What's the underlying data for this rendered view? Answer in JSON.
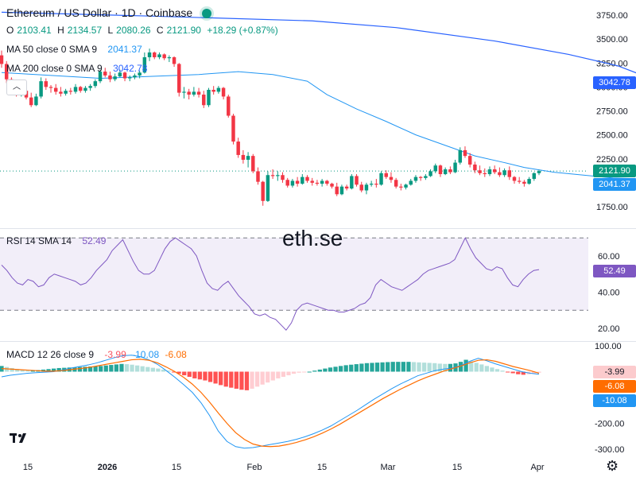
{
  "header": {
    "title": "Ethereum / US Dollar · 1D · Coinbase",
    "ohlc": {
      "o_label": "O",
      "o": "2103.41",
      "h_label": "H",
      "h": "2134.57",
      "l_label": "L",
      "l": "2080.26",
      "c_label": "C",
      "c": "2121.90",
      "change": "+18.29 (+0.87%)"
    },
    "ma50": {
      "label": "MA 50 close 0 SMA 9",
      "value": "2041.37"
    },
    "ma200": {
      "label": "MA 200 close 0 SMA 9",
      "value": "3042.78"
    }
  },
  "watermark": "eth.se",
  "price_tags": {
    "ma200": "3042.78",
    "last": "2121.90",
    "ma50": "2041.37"
  },
  "rsi": {
    "label": "RSI 14 SMA 14",
    "value": "52.49",
    "tag": "52.49"
  },
  "macd": {
    "label": "MACD 12 26 close 9",
    "hist": "-3.99",
    "macd": "-10.08",
    "signal": "-6.08",
    "tags": [
      "-3.99",
      "-6.08",
      "-10.08"
    ]
  },
  "colors": {
    "up": "#089981",
    "down": "#f23645",
    "ma50": "#2196f3",
    "ma200": "#2962ff",
    "rsi": "#7e57c2",
    "macd": "#2196f3",
    "signal": "#ff6d00"
  },
  "chart_data": [
    {
      "type": "candlestick",
      "title": "Ethereum / US Dollar · 1D · Coinbase",
      "x_tick_labels": [
        "15",
        "2026",
        "15",
        "Feb",
        "15",
        "Mar",
        "15",
        "Apr"
      ],
      "y_tick_labels": [
        "3750.00",
        "3500.00",
        "3250.00",
        "3000.00",
        "2750.00",
        "2500.00",
        "2250.00",
        "1750.00"
      ],
      "ylim": [
        1650,
        3800
      ],
      "candles": [
        [
          3330,
          3380,
          3200,
          3240
        ],
        [
          3240,
          3270,
          3040,
          3080
        ],
        [
          3080,
          3100,
          2960,
          3000
        ],
        [
          3000,
          3040,
          2900,
          2940
        ],
        [
          2940,
          2990,
          2900,
          2960
        ],
        [
          2960,
          3020,
          2870,
          2890
        ],
        [
          2890,
          2940,
          2790,
          2810
        ],
        [
          2810,
          2930,
          2800,
          2900
        ],
        [
          2900,
          3100,
          2880,
          3060
        ],
        [
          3060,
          3090,
          2970,
          3000
        ],
        [
          3000,
          3020,
          2940,
          2990
        ],
        [
          2990,
          3030,
          2920,
          2950
        ],
        [
          2950,
          3000,
          2900,
          2930
        ],
        [
          2930,
          2980,
          2910,
          2960
        ],
        [
          2960,
          2990,
          2920,
          2950
        ],
        [
          2950,
          3030,
          2930,
          3000
        ],
        [
          3000,
          3010,
          2940,
          2960
        ],
        [
          2960,
          3010,
          2940,
          2990
        ],
        [
          2990,
          3030,
          2960,
          3010
        ],
        [
          3010,
          3080,
          2990,
          3060
        ],
        [
          3060,
          3180,
          3040,
          3160
        ],
        [
          3160,
          3200,
          3100,
          3120
        ],
        [
          3120,
          3160,
          3050,
          3080
        ],
        [
          3080,
          3140,
          3060,
          3110
        ],
        [
          3110,
          3180,
          3100,
          3150
        ],
        [
          3150,
          3160,
          3060,
          3090
        ],
        [
          3090,
          3120,
          3060,
          3100
        ],
        [
          3100,
          3140,
          3080,
          3120
        ],
        [
          3120,
          3170,
          3090,
          3150
        ],
        [
          3150,
          3360,
          3140,
          3310
        ],
        [
          3310,
          3400,
          3270,
          3360
        ],
        [
          3360,
          3370,
          3290,
          3310
        ],
        [
          3310,
          3360,
          3290,
          3340
        ],
        [
          3340,
          3350,
          3280,
          3300
        ],
        [
          3300,
          3330,
          3260,
          3310
        ],
        [
          3310,
          3320,
          3210,
          3240
        ],
        [
          3240,
          3250,
          2900,
          2940
        ],
        [
          2940,
          3000,
          2880,
          2950
        ],
        [
          2950,
          2980,
          2870,
          2920
        ],
        [
          2920,
          3000,
          2900,
          2950
        ],
        [
          2950,
          2990,
          2890,
          2920
        ],
        [
          2920,
          2960,
          2780,
          2810
        ],
        [
          2810,
          2990,
          2790,
          2970
        ],
        [
          2970,
          3010,
          2920,
          2950
        ],
        [
          2950,
          3010,
          2930,
          2990
        ],
        [
          2990,
          3000,
          2870,
          2900
        ],
        [
          2900,
          2920,
          2680,
          2700
        ],
        [
          2700,
          2720,
          2400,
          2430
        ],
        [
          2430,
          2470,
          2260,
          2290
        ],
        [
          2290,
          2340,
          2200,
          2240
        ],
        [
          2240,
          2320,
          2160,
          2280
        ],
        [
          2280,
          2300,
          2100,
          2120
        ],
        [
          2120,
          2160,
          1980,
          2010
        ],
        [
          2010,
          2020,
          1760,
          1810
        ],
        [
          1810,
          2120,
          1800,
          2080
        ],
        [
          2080,
          2140,
          2040,
          2070
        ],
        [
          2070,
          2120,
          2020,
          2080
        ],
        [
          2080,
          2110,
          2000,
          2030
        ],
        [
          2030,
          2050,
          1950,
          1970
        ],
        [
          1970,
          2040,
          1950,
          2020
        ],
        [
          2020,
          2060,
          1960,
          1990
        ],
        [
          1990,
          2090,
          1980,
          2060
        ],
        [
          2060,
          2080,
          2000,
          2020
        ],
        [
          2020,
          2050,
          1970,
          2000
        ],
        [
          2000,
          2030,
          1970,
          1990
        ],
        [
          1990,
          2040,
          1960,
          2020
        ],
        [
          2020,
          2030,
          1970,
          1990
        ],
        [
          1990,
          2000,
          1940,
          1960
        ],
        [
          1960,
          2000,
          1860,
          1880
        ],
        [
          1880,
          1980,
          1870,
          1960
        ],
        [
          1960,
          1980,
          1920,
          1940
        ],
        [
          1940,
          2090,
          1930,
          2070
        ],
        [
          2070,
          2090,
          1960,
          1980
        ],
        [
          1980,
          2010,
          1900,
          1920
        ],
        [
          1920,
          2000,
          1880,
          1980
        ],
        [
          1980,
          2020,
          1960,
          1990
        ],
        [
          1990,
          2040,
          1950,
          1980
        ],
        [
          1980,
          2120,
          1970,
          2100
        ],
        [
          2100,
          2130,
          2040,
          2060
        ],
        [
          2060,
          2110,
          2000,
          2030
        ],
        [
          2030,
          2050,
          1940,
          1960
        ],
        [
          1960,
          1990,
          1920,
          1950
        ],
        [
          1950,
          1990,
          1930,
          1980
        ],
        [
          1980,
          2040,
          1970,
          2020
        ],
        [
          2020,
          2080,
          2000,
          2060
        ],
        [
          2060,
          2070,
          2020,
          2050
        ],
        [
          2050,
          2090,
          2030,
          2070
        ],
        [
          2070,
          2140,
          2060,
          2120
        ],
        [
          2120,
          2200,
          2100,
          2180
        ],
        [
          2180,
          2190,
          2060,
          2090
        ],
        [
          2090,
          2160,
          2080,
          2140
        ],
        [
          2140,
          2170,
          2090,
          2110
        ],
        [
          2110,
          2240,
          2100,
          2210
        ],
        [
          2210,
          2370,
          2190,
          2340
        ],
        [
          2340,
          2380,
          2260,
          2280
        ],
        [
          2280,
          2310,
          2160,
          2190
        ],
        [
          2190,
          2220,
          2100,
          2130
        ],
        [
          2130,
          2180,
          2080,
          2100
        ],
        [
          2100,
          2150,
          2060,
          2090
        ],
        [
          2090,
          2170,
          2070,
          2140
        ],
        [
          2140,
          2180,
          2090,
          2110
        ],
        [
          2110,
          2160,
          2060,
          2080
        ],
        [
          2080,
          2150,
          2060,
          2130
        ],
        [
          2130,
          2170,
          2030,
          2060
        ],
        [
          2060,
          2070,
          1990,
          2020
        ],
        [
          2020,
          2060,
          1990,
          2010
        ],
        [
          2010,
          2030,
          1960,
          1990
        ],
        [
          1990,
          2060,
          1980,
          2040
        ],
        [
          2040,
          2110,
          2020,
          2100
        ],
        [
          2100,
          2135,
          2080,
          2122
        ]
      ],
      "ma50": [
        [
          0,
          3150
        ],
        [
          20,
          3090
        ],
        [
          40,
          3130
        ],
        [
          48,
          3160
        ],
        [
          55,
          3130
        ],
        [
          62,
          3060
        ],
        [
          66,
          2920
        ],
        [
          72,
          2770
        ],
        [
          78,
          2640
        ],
        [
          84,
          2500
        ],
        [
          90,
          2390
        ],
        [
          96,
          2280
        ],
        [
          102,
          2210
        ],
        [
          106,
          2160
        ],
        [
          112,
          2110
        ],
        [
          118,
          2080
        ],
        [
          124,
          2050
        ],
        [
          130,
          2040
        ],
        [
          134,
          2041.37
        ]
      ],
      "ma200": [
        [
          0,
          3780
        ],
        [
          30,
          3740
        ],
        [
          63,
          3690
        ],
        [
          80,
          3620
        ],
        [
          100,
          3480
        ],
        [
          115,
          3340
        ],
        [
          125,
          3220
        ],
        [
          134,
          3042.78
        ]
      ]
    },
    {
      "type": "line",
      "title": "RSI 14 SMA 14",
      "y_tick_labels": [
        "60.00",
        "40.00",
        "20.00"
      ],
      "ylim": [
        15,
        80
      ],
      "bands": [
        30,
        70
      ],
      "values": [
        55,
        52,
        48,
        45,
        44,
        47,
        46,
        43,
        44,
        48,
        50,
        49,
        48,
        47,
        46,
        44,
        45,
        48,
        52,
        55,
        58,
        63,
        66,
        69,
        63,
        57,
        52,
        50,
        50,
        52,
        58,
        64,
        68,
        70,
        68,
        66,
        64,
        60,
        52,
        45,
        42,
        41,
        44,
        46,
        42,
        38,
        35,
        32,
        28,
        27,
        28,
        26,
        25,
        22,
        19,
        23,
        30,
        33,
        34,
        33,
        32,
        31,
        30,
        30,
        29,
        29,
        30,
        31,
        33,
        34,
        37,
        44,
        47,
        45,
        43,
        42,
        41,
        43,
        45,
        47,
        50,
        52,
        53,
        54,
        55,
        56,
        58,
        64,
        70,
        64,
        59,
        56,
        53,
        52,
        54,
        53,
        48,
        44,
        43,
        47,
        50,
        52,
        52.49
      ]
    },
    {
      "type": "bar+line",
      "title": "MACD 12 26 close 9",
      "y_tick_labels": [
        "100.00",
        "0.00",
        "-100.00",
        "-200.00",
        "-300.00"
      ],
      "ylim": [
        -320,
        110
      ],
      "histogram": [
        22,
        18,
        14,
        10,
        6,
        4,
        5,
        6,
        8,
        10,
        12,
        14,
        15,
        16,
        17,
        18,
        19,
        20,
        21,
        22,
        24,
        26,
        28,
        30,
        29,
        27,
        24,
        21,
        18,
        15,
        12,
        8,
        4,
        -2,
        -8,
        -14,
        -20,
        -26,
        -30,
        -34,
        -40,
        -46,
        -52,
        -58,
        -62,
        -66,
        -70,
        -72,
        -66,
        -58,
        -50,
        -42,
        -34,
        -26,
        -20,
        -14,
        -8,
        -4,
        -2,
        0,
        4,
        8,
        12,
        16,
        19,
        22,
        25,
        27,
        29,
        31,
        33,
        34,
        35,
        36,
        37,
        38,
        38,
        38,
        38,
        37,
        36,
        35,
        34,
        33,
        31,
        30,
        30,
        32,
        38,
        46,
        40,
        34,
        28,
        22,
        16,
        10,
        4,
        -2,
        -6,
        -10,
        -12,
        -10,
        -8,
        -3.99
      ],
      "macd": [
        -20,
        -14,
        -10,
        -6,
        -4,
        -2,
        0,
        6,
        14,
        20,
        26,
        34,
        44,
        54,
        62,
        64,
        58,
        46,
        28,
        4,
        -22,
        -50,
        -80,
        -120,
        -170,
        -230,
        -270,
        -290,
        -296,
        -294,
        -288,
        -282,
        -276,
        -270,
        -262,
        -252,
        -240,
        -226,
        -210,
        -190,
        -170,
        -150,
        -128,
        -106,
        -86,
        -66,
        -48,
        -32,
        -16,
        -6,
        4,
        10,
        14,
        24,
        40,
        52,
        42,
        30,
        20,
        10,
        0,
        -6,
        -10.08
      ],
      "signal": [
        12,
        10,
        8,
        6,
        4,
        2,
        2,
        4,
        8,
        12,
        16,
        22,
        28,
        34,
        40,
        46,
        48,
        44,
        34,
        18,
        0,
        -22,
        -48,
        -80,
        -118,
        -160,
        -200,
        -236,
        -262,
        -280,
        -288,
        -290,
        -288,
        -282,
        -274,
        -264,
        -252,
        -238,
        -222,
        -204,
        -184,
        -164,
        -144,
        -124,
        -104,
        -86,
        -68,
        -52,
        -36,
        -22,
        -10,
        2,
        12,
        22,
        34,
        44,
        46,
        40,
        30,
        20,
        12,
        4,
        -6.08
      ]
    }
  ]
}
